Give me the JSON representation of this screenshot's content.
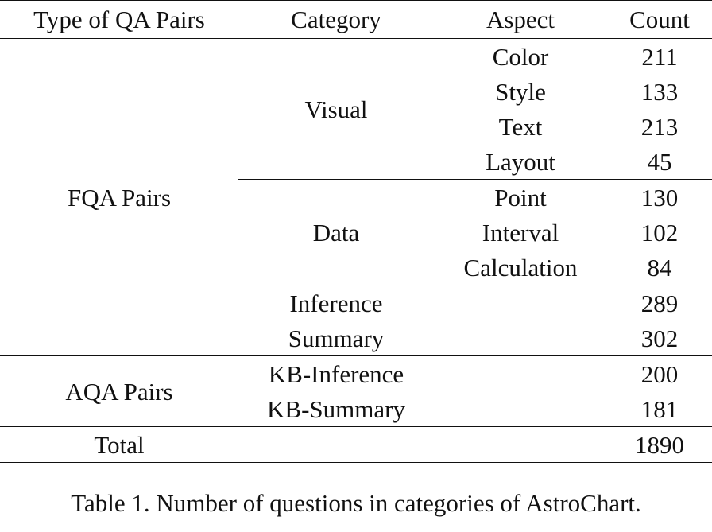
{
  "table": {
    "headers": {
      "type": "Type of QA Pairs",
      "category": "Category",
      "aspect": "Aspect",
      "count": "Count"
    },
    "groups": {
      "fqa": {
        "label": "FQA Pairs",
        "visual": {
          "label": "Visual",
          "rows": [
            {
              "aspect": "Color",
              "count": "211"
            },
            {
              "aspect": "Style",
              "count": "133"
            },
            {
              "aspect": "Text",
              "count": "213"
            },
            {
              "aspect": "Layout",
              "count": "45"
            }
          ]
        },
        "data": {
          "label": "Data",
          "rows": [
            {
              "aspect": "Point",
              "count": "130"
            },
            {
              "aspect": "Interval",
              "count": "102"
            },
            {
              "aspect": "Calculation",
              "count": "84"
            }
          ]
        },
        "inference": {
          "label": "Inference",
          "count": "289"
        },
        "summary": {
          "label": "Summary",
          "count": "302"
        }
      },
      "aqa": {
        "label": "AQA Pairs",
        "kb_inference": {
          "label": "KB-Inference",
          "count": "200"
        },
        "kb_summary": {
          "label": "KB-Summary",
          "count": "181"
        }
      }
    },
    "total": {
      "label": "Total",
      "count": "1890"
    }
  },
  "caption": "Table 1. Number of questions in categories of AstroChart."
}
